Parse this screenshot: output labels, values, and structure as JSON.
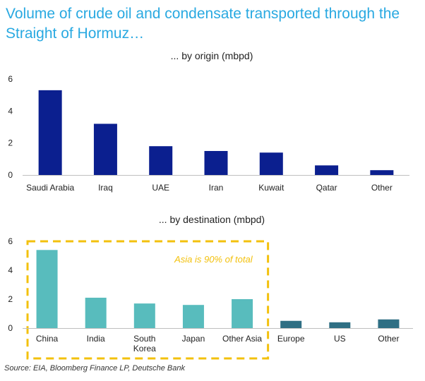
{
  "title": "Volume of crude oil and condensate transported through the Straight of Hormuz…",
  "source": "Source: EIA, Bloomberg Finance LP, Deutsche Bank",
  "colors": {
    "title": "#29a9e1",
    "origin_bar": "#0b1f8f",
    "asia_bar": "#58bcbd",
    "non_asia_bar": "#2f6f84",
    "highlight_box": "#f3c10d",
    "axis": "#bfbfbf"
  },
  "chart_data": [
    {
      "type": "bar",
      "title": "... by origin (mbpd)",
      "categories": [
        "Saudi Arabia",
        "Iraq",
        "UAE",
        "Iran",
        "Kuwait",
        "Qatar",
        "Other"
      ],
      "values": [
        5.3,
        3.2,
        1.8,
        1.5,
        1.4,
        0.6,
        0.3
      ],
      "ylim": [
        0,
        6
      ],
      "yticks": [
        0,
        2,
        4,
        6
      ],
      "xlabel": "",
      "ylabel": ""
    },
    {
      "type": "bar",
      "title": "... by destination (mbpd)",
      "categories": [
        "China",
        "India",
        "South Korea",
        "Japan",
        "Other Asia",
        "Europe",
        "US",
        "Other"
      ],
      "values": [
        5.4,
        2.1,
        1.7,
        1.6,
        2.0,
        0.5,
        0.4,
        0.6
      ],
      "region": [
        "Asia",
        "Asia",
        "Asia",
        "Asia",
        "Asia",
        "Non-Asia",
        "Non-Asia",
        "Non-Asia"
      ],
      "ylim": [
        0,
        6
      ],
      "yticks": [
        0,
        2,
        4,
        6
      ],
      "annotation": "Asia is 90% of total",
      "xlabel": "",
      "ylabel": ""
    }
  ]
}
